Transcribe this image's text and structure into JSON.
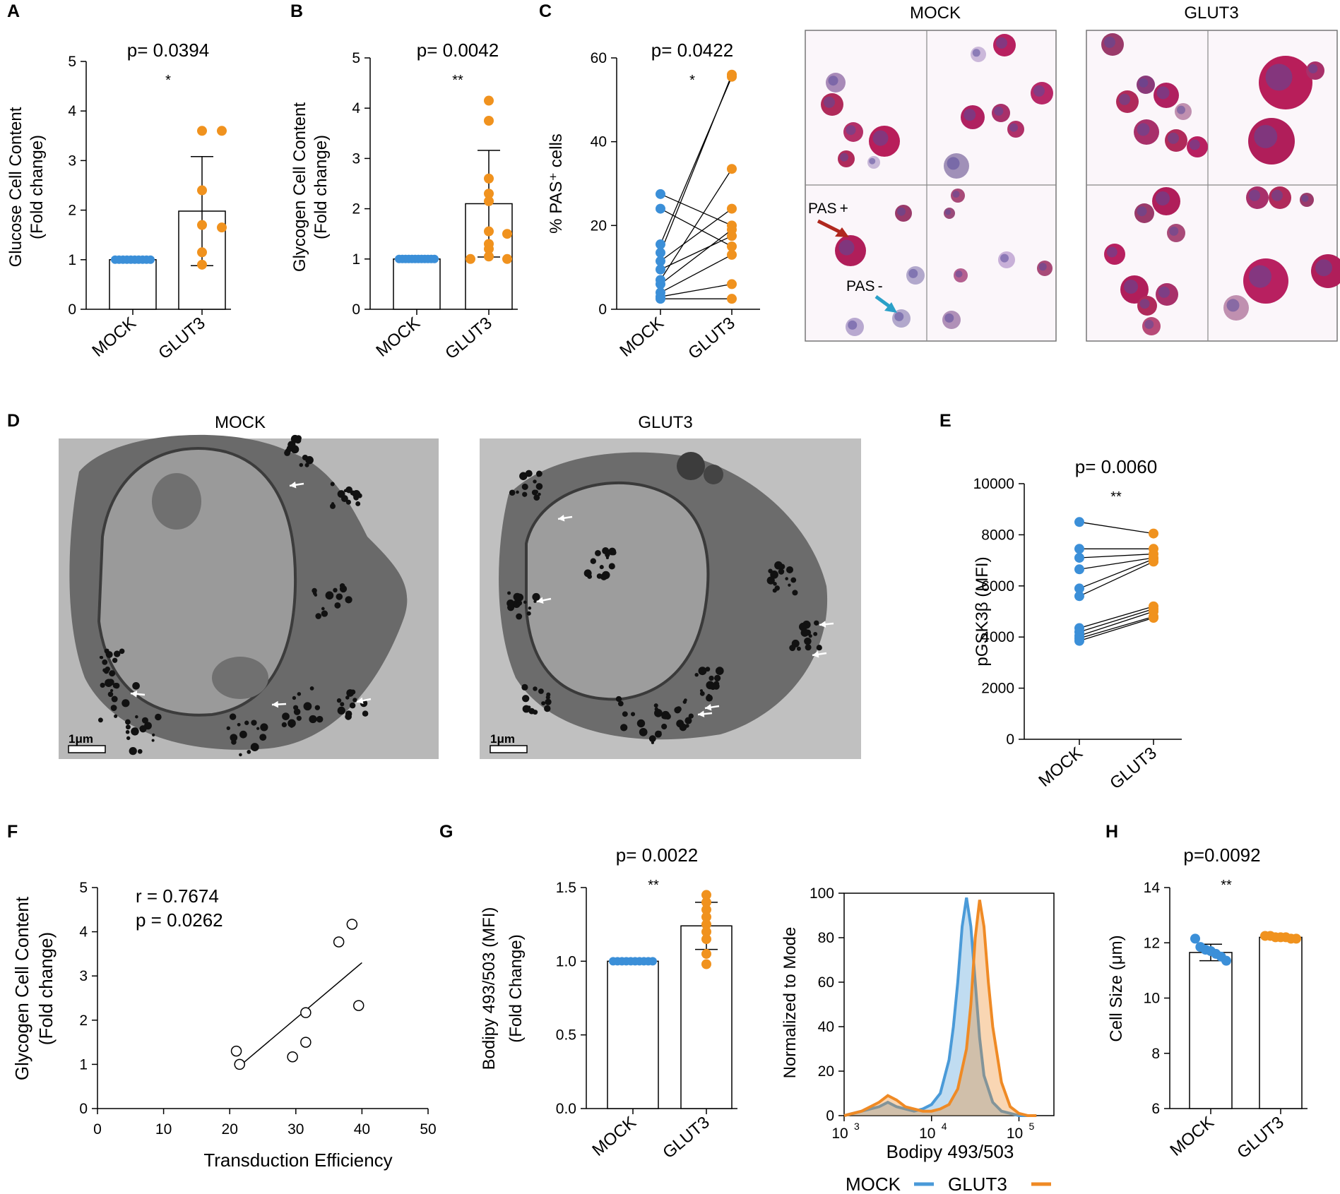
{
  "panel_letters": {
    "A": "A",
    "B": "B",
    "C": "C",
    "D": "D",
    "E": "E",
    "F": "F",
    "G": "G",
    "H": "H"
  },
  "colors": {
    "mock": "#3b8fd8",
    "glut3": "#f0921e",
    "axis": "#000000",
    "pas_pos_arrow": "#b0281e",
    "pas_neg_arrow": "#2aa0c8",
    "mock_hist": "#4a9ad8",
    "glut3_hist": "#ef8a25",
    "micro_bg": "#fbf6fa",
    "em_bg": "#b5b5b5"
  },
  "micrographs": {
    "mock_title": "MOCK",
    "glut3_title": "GLUT3",
    "pas_pos_label": "PAS +",
    "pas_neg_label": "PAS -"
  },
  "em": {
    "mock_title": "MOCK",
    "glut3_title": "GLUT3",
    "scale_bar_label": "1μm"
  },
  "chart_data": [
    {
      "id": "A",
      "type": "bar",
      "ylabel_line1": "Glucose Cell Content",
      "ylabel_line2": "(Fold change)",
      "categories": [
        "MOCK",
        "GLUT3"
      ],
      "ylim": [
        0,
        5
      ],
      "yticks": [
        "0",
        "1",
        "2",
        "3",
        "4",
        "5"
      ],
      "p_prefix": "p=",
      "p_value": "0.0394",
      "significance": "*",
      "series": [
        {
          "name": "MOCK",
          "mean": 1.0,
          "sd": 0,
          "points": [
            1,
            1,
            1,
            1,
            1,
            1,
            1,
            1,
            1,
            1
          ]
        },
        {
          "name": "GLUT3",
          "mean": 1.98,
          "sd": 1.1,
          "points": [
            3.6,
            3.6,
            2.4,
            1.7,
            1.65,
            1.15,
            0.9
          ]
        }
      ]
    },
    {
      "id": "B",
      "type": "bar",
      "ylabel_line1": "Glycogen Cell Content",
      "ylabel_line2": "(Fold change)",
      "categories": [
        "MOCK",
        "GLUT3"
      ],
      "ylim": [
        0,
        5
      ],
      "yticks": [
        "0",
        "1",
        "2",
        "3",
        "4",
        "5"
      ],
      "p_prefix": "p=",
      "p_value": "0.0042",
      "significance": "**",
      "series": [
        {
          "name": "MOCK",
          "mean": 1.0,
          "sd": 0,
          "points": [
            1,
            1,
            1,
            1,
            1,
            1,
            1,
            1,
            1,
            1,
            1,
            1
          ]
        },
        {
          "name": "GLUT3",
          "mean": 2.1,
          "sd": 1.06,
          "points": [
            4.15,
            3.75,
            2.6,
            2.3,
            2.15,
            1.55,
            1.5,
            1.3,
            1.2,
            1.05,
            1.0,
            1.0
          ]
        }
      ]
    },
    {
      "id": "C",
      "type": "paired",
      "ylabel": "% PAS⁺ cells",
      "categories": [
        "MOCK",
        "GLUT3"
      ],
      "ylim": [
        0,
        60
      ],
      "yticks": [
        "0",
        "20",
        "40",
        "60"
      ],
      "p_prefix": "p=",
      "p_value": "0.0422",
      "significance": "*",
      "pairs": [
        [
          27.5,
          20
        ],
        [
          24,
          15
        ],
        [
          15.5,
          55.5
        ],
        [
          13.5,
          56
        ],
        [
          11.5,
          24
        ],
        [
          9.5,
          17.5
        ],
        [
          7,
          33.5
        ],
        [
          6,
          19
        ],
        [
          4,
          13
        ],
        [
          3,
          6
        ],
        [
          2.5,
          2.5
        ]
      ]
    },
    {
      "id": "E",
      "type": "paired",
      "ylabel": "pGSK3β (MFI)",
      "categories": [
        "MOCK",
        "GLUT3"
      ],
      "ylim": [
        0,
        10000
      ],
      "yticks": [
        "0",
        "2000",
        "4000",
        "6000",
        "8000",
        "10000"
      ],
      "p_prefix": "p=",
      "p_value": "0.0060",
      "significance": "**",
      "pairs": [
        [
          8500,
          8050
        ],
        [
          7450,
          7450
        ],
        [
          7100,
          7250
        ],
        [
          6650,
          7100
        ],
        [
          5900,
          7050
        ],
        [
          5600,
          6950
        ],
        [
          4350,
          5200
        ],
        [
          4200,
          5100
        ],
        [
          4050,
          5000
        ],
        [
          3950,
          4800
        ],
        [
          3850,
          4750
        ]
      ]
    },
    {
      "id": "F",
      "type": "scatter",
      "xlabel": "Transduction Efficiency",
      "ylabel_line1": "Glycogen Cell Content",
      "ylabel_line2": "(Fold change)",
      "xlim": [
        0,
        50
      ],
      "ylim": [
        0,
        5
      ],
      "xticks": [
        "0",
        "10",
        "20",
        "30",
        "40",
        "50"
      ],
      "yticks": [
        "0",
        "1",
        "2",
        "3",
        "4",
        "5"
      ],
      "r_text": "r = 0.7674",
      "p_text": "p = 0.0262",
      "x": [
        21,
        21.5,
        29.5,
        31.5,
        31.5,
        36.5,
        38.5,
        39.5
      ],
      "y": [
        1.3,
        1.0,
        1.17,
        2.17,
        1.5,
        3.77,
        4.17,
        2.33
      ],
      "fit": {
        "x0": 21,
        "y0": 0.9,
        "x1": 40,
        "y1": 3.3
      }
    },
    {
      "id": "G",
      "type": "bar",
      "ylabel_line1": "Bodipy 493/503 (MFI)",
      "ylabel_line2": "(Fold Change)",
      "categories": [
        "MOCK",
        "GLUT3"
      ],
      "ylim": [
        0,
        1.5
      ],
      "yticks": [
        "0.0",
        "0.5",
        "1.0",
        "1.5"
      ],
      "p_prefix": "p=",
      "p_value": "0.0022",
      "significance": "**",
      "series": [
        {
          "name": "MOCK",
          "mean": 1.0,
          "sd": 0,
          "points": [
            1,
            1,
            1,
            1,
            1,
            1,
            1,
            1,
            1,
            1
          ]
        },
        {
          "name": "GLUT3",
          "mean": 1.24,
          "sd": 0.16,
          "points": [
            1.45,
            1.4,
            1.35,
            1.3,
            1.25,
            1.2,
            1.15,
            1.05,
            0.98
          ]
        }
      ]
    },
    {
      "id": "G-hist",
      "type": "area",
      "xlabel": "Bodipy 493/503",
      "ylabel": "Normalized to Mode",
      "ylim": [
        0,
        100
      ],
      "yticks": [
        "0",
        "20",
        "40",
        "60",
        "80",
        "100"
      ],
      "xticks_log": [
        3,
        4,
        5
      ],
      "xticks_base": "10",
      "legend": [
        {
          "name": "MOCK"
        },
        {
          "name": "GLUT3"
        }
      ],
      "series": [
        {
          "name": "MOCK",
          "log_x": [
            3.0,
            3.2,
            3.4,
            3.5,
            3.6,
            3.7,
            3.8,
            3.9,
            4.0,
            4.1,
            4.2,
            4.25,
            4.3,
            4.35,
            4.4,
            4.45,
            4.5,
            4.55,
            4.6,
            4.7,
            4.8,
            4.9,
            5.0,
            5.1,
            5.2
          ],
          "y": [
            0,
            2,
            4,
            6,
            4,
            3,
            2,
            3,
            5,
            10,
            25,
            40,
            60,
            85,
            98,
            85,
            60,
            35,
            18,
            6,
            2,
            1,
            0,
            0,
            0
          ]
        },
        {
          "name": "GLUT3",
          "log_x": [
            3.0,
            3.2,
            3.4,
            3.5,
            3.6,
            3.7,
            3.8,
            3.9,
            4.0,
            4.1,
            4.2,
            4.3,
            4.4,
            4.45,
            4.5,
            4.55,
            4.6,
            4.65,
            4.7,
            4.8,
            4.9,
            5.0,
            5.1,
            5.2
          ],
          "y": [
            0,
            2,
            6,
            9,
            7,
            4,
            3,
            2,
            2,
            3,
            5,
            12,
            30,
            50,
            80,
            97,
            85,
            60,
            40,
            15,
            4,
            1,
            0,
            0
          ]
        }
      ]
    },
    {
      "id": "H",
      "type": "bar",
      "ylabel": "Cell Size (μm)",
      "categories": [
        "MOCK",
        "GLUT3"
      ],
      "ylim": [
        6,
        14
      ],
      "yticks": [
        "6",
        "8",
        "10",
        "12",
        "14"
      ],
      "p_prefix": "p=",
      "p_value": "0.0092",
      "significance": "**",
      "series": [
        {
          "name": "MOCK",
          "mean": 11.65,
          "sd": 0.3,
          "points": [
            12.15,
            11.85,
            11.75,
            11.7,
            11.6,
            11.5,
            11.35
          ]
        },
        {
          "name": "GLUT3",
          "mean": 12.2,
          "sd": 0.05,
          "points": [
            12.25,
            12.25,
            12.2,
            12.2,
            12.2,
            12.15,
            12.15
          ]
        }
      ]
    }
  ]
}
